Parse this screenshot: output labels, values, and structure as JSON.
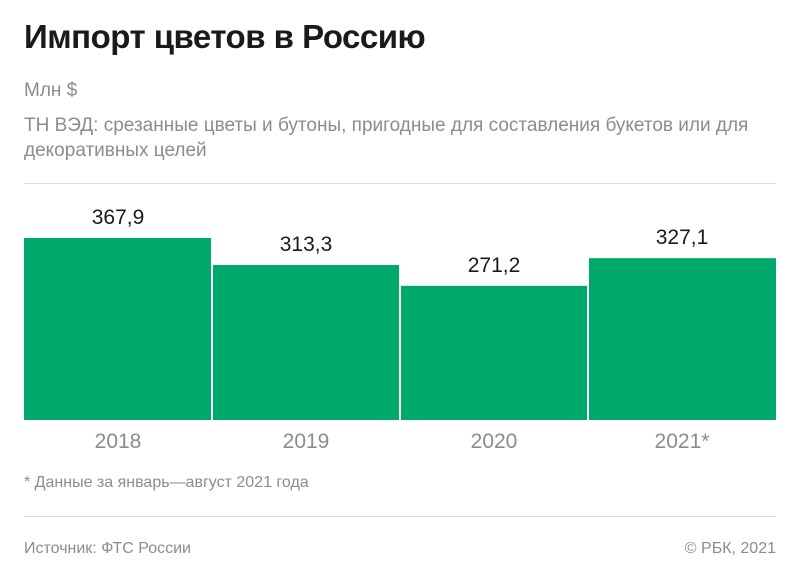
{
  "title": "Импорт цветов в Россию",
  "unit": "Млн $",
  "subtitle": "ТН ВЭД: срезанные цветы и бутоны, пригодные для составления букетов или для декоративных целей",
  "footnote": "* Данные за январь—август 2021 года",
  "source": "Источник: ФТС России",
  "copyright": "© РБК, 2021",
  "colors": {
    "bar": "#00a86b",
    "axis_text": "#8c8c8c",
    "value_text": "#1a1a1a"
  },
  "chart_data": {
    "type": "bar",
    "categories": [
      "2018",
      "2019",
      "2020",
      "2021*"
    ],
    "values": [
      367.9,
      313.3,
      271.2,
      327.1
    ],
    "value_labels": [
      "367,9",
      "313,3",
      "271,2",
      "327,1"
    ],
    "ylim": [
      0,
      367.9
    ],
    "grid": false
  }
}
